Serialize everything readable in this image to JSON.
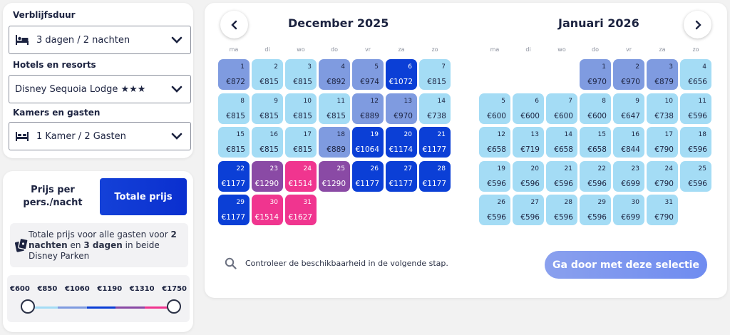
{
  "filters": {
    "stay_label": "Verblijfsduur",
    "stay_value": "3 dagen / 2 nachten",
    "hotel_label": "Hotels en resorts",
    "hotel_value": "Disney Sequoia Lodge ★★★",
    "rooms_label": "Kamers en gasten",
    "rooms_value": "1 Kamer / 2 Gasten"
  },
  "pricing": {
    "per_person_label": "Prijs per pers./nacht",
    "total_label": "Totale prijs",
    "info_parts": [
      {
        "text": "Totale prijs voor alle gasten voor ",
        "bold": false
      },
      {
        "text": "2 nachten",
        "bold": true
      },
      {
        "text": " en ",
        "bold": false
      },
      {
        "text": "3 dagen",
        "bold": true
      },
      {
        "text": " in beide Disney Parken",
        "bold": false
      }
    ],
    "price_steps": [
      "€600",
      "€850",
      "€1060",
      "€1190",
      "€1310",
      "€1750"
    ],
    "tier_colors": [
      "#a4dcf5",
      "#7f9be0",
      "#0b3fd6",
      "#8a4aa5",
      "#f0358f"
    ],
    "slider_range": {
      "min": "€600",
      "max": "€1750"
    }
  },
  "calendar": {
    "weekdays": [
      "ma",
      "di",
      "wo",
      "do",
      "vr",
      "za",
      "zo"
    ],
    "months": [
      {
        "title": "December 2025",
        "start_offset": 0,
        "days": [
          {
            "d": "1",
            "p": "€872",
            "t": 1
          },
          {
            "d": "2",
            "p": "€815",
            "t": 0
          },
          {
            "d": "3",
            "p": "€815",
            "t": 0
          },
          {
            "d": "4",
            "p": "€892",
            "t": 1
          },
          {
            "d": "5",
            "p": "€974",
            "t": 1
          },
          {
            "d": "6",
            "p": "€1072",
            "t": 2
          },
          {
            "d": "7",
            "p": "€815",
            "t": 0
          },
          {
            "d": "8",
            "p": "€815",
            "t": 0
          },
          {
            "d": "9",
            "p": "€815",
            "t": 0
          },
          {
            "d": "10",
            "p": "€815",
            "t": 0
          },
          {
            "d": "11",
            "p": "€815",
            "t": 0
          },
          {
            "d": "12",
            "p": "€889",
            "t": 1
          },
          {
            "d": "13",
            "p": "€970",
            "t": 1
          },
          {
            "d": "14",
            "p": "€738",
            "t": 0
          },
          {
            "d": "15",
            "p": "€815",
            "t": 0
          },
          {
            "d": "16",
            "p": "€815",
            "t": 0
          },
          {
            "d": "17",
            "p": "€815",
            "t": 0
          },
          {
            "d": "18",
            "p": "€889",
            "t": 1
          },
          {
            "d": "19",
            "p": "€1064",
            "t": 2
          },
          {
            "d": "20",
            "p": "€1174",
            "t": 2
          },
          {
            "d": "21",
            "p": "€1177",
            "t": 2
          },
          {
            "d": "22",
            "p": "€1177",
            "t": 2
          },
          {
            "d": "23",
            "p": "€1290",
            "t": 3
          },
          {
            "d": "24",
            "p": "€1514",
            "t": 4
          },
          {
            "d": "25",
            "p": "€1290",
            "t": 3
          },
          {
            "d": "26",
            "p": "€1177",
            "t": 2
          },
          {
            "d": "27",
            "p": "€1177",
            "t": 2
          },
          {
            "d": "28",
            "p": "€1177",
            "t": 2
          },
          {
            "d": "29",
            "p": "€1177",
            "t": 2
          },
          {
            "d": "30",
            "p": "€1514",
            "t": 4
          },
          {
            "d": "31",
            "p": "€1627",
            "t": 4
          }
        ]
      },
      {
        "title": "Januari 2026",
        "start_offset": 3,
        "days": [
          {
            "d": "1",
            "p": "€970",
            "t": 1
          },
          {
            "d": "2",
            "p": "€970",
            "t": 1
          },
          {
            "d": "3",
            "p": "€879",
            "t": 1
          },
          {
            "d": "4",
            "p": "€656",
            "t": 0
          },
          {
            "d": "5",
            "p": "€600",
            "t": 0
          },
          {
            "d": "6",
            "p": "€600",
            "t": 0
          },
          {
            "d": "7",
            "p": "€600",
            "t": 0
          },
          {
            "d": "8",
            "p": "€600",
            "t": 0
          },
          {
            "d": "9",
            "p": "€647",
            "t": 0
          },
          {
            "d": "10",
            "p": "€738",
            "t": 0
          },
          {
            "d": "11",
            "p": "€596",
            "t": 0
          },
          {
            "d": "12",
            "p": "€658",
            "t": 0
          },
          {
            "d": "13",
            "p": "€719",
            "t": 0
          },
          {
            "d": "14",
            "p": "€658",
            "t": 0
          },
          {
            "d": "15",
            "p": "€658",
            "t": 0
          },
          {
            "d": "16",
            "p": "€844",
            "t": 0
          },
          {
            "d": "17",
            "p": "€790",
            "t": 0
          },
          {
            "d": "18",
            "p": "€596",
            "t": 0
          },
          {
            "d": "19",
            "p": "€596",
            "t": 0
          },
          {
            "d": "20",
            "p": "€596",
            "t": 0
          },
          {
            "d": "21",
            "p": "€596",
            "t": 0
          },
          {
            "d": "22",
            "p": "€596",
            "t": 0
          },
          {
            "d": "23",
            "p": "€699",
            "t": 0
          },
          {
            "d": "24",
            "p": "€790",
            "t": 0
          },
          {
            "d": "25",
            "p": "€596",
            "t": 0
          },
          {
            "d": "26",
            "p": "€596",
            "t": 0
          },
          {
            "d": "27",
            "p": "€596",
            "t": 0
          },
          {
            "d": "28",
            "p": "€596",
            "t": 0
          },
          {
            "d": "29",
            "p": "€596",
            "t": 0
          },
          {
            "d": "30",
            "p": "€699",
            "t": 0
          },
          {
            "d": "31",
            "p": "€790",
            "t": 0
          }
        ]
      }
    ],
    "tier_styles": [
      {
        "bg": "#a4dcf5",
        "fg": "#1c2340"
      },
      {
        "bg": "#7f9be0",
        "fg": "#1c2340"
      },
      {
        "bg": "#0b3fd6",
        "fg": "#ffffff"
      },
      {
        "bg": "#8a4aa5",
        "fg": "#ffffff"
      },
      {
        "bg": "#f0358f",
        "fg": "#ffffff"
      }
    ],
    "hint": "Controleer de beschikbaarheid in de volgende stap.",
    "continue_label": "Ga door met deze selectie"
  }
}
